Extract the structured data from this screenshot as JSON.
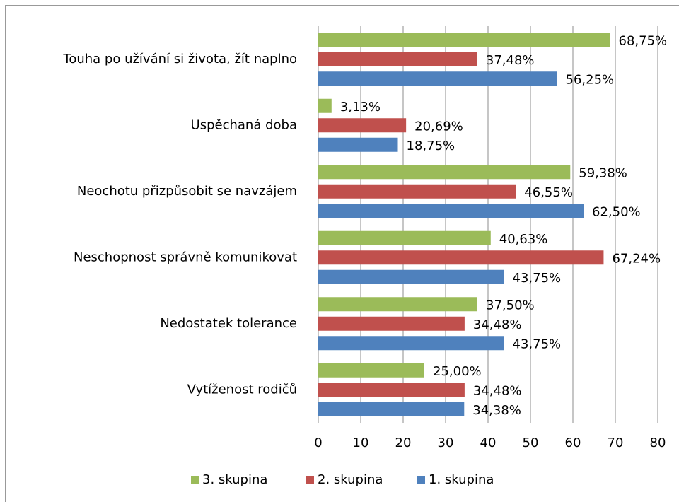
{
  "chart_data": {
    "type": "hbar",
    "categories": [
      "Touha po užívání si života, žít naplno",
      "Uspěchaná doba",
      "Neochotu přizpůsobit se navzájem",
      "Neschopnost správně komunikovat",
      "Nedostatek tolerance",
      "Vytíženost rodičů"
    ],
    "series": [
      {
        "name": "3. skupina",
        "color": "#9bbb59",
        "values": [
          68.75,
          3.13,
          59.38,
          40.63,
          37.5,
          25.0
        ],
        "value_labels": [
          "68,75%",
          "3,13%",
          "59,38%",
          "40,63%",
          "37,50%",
          "25,00%"
        ]
      },
      {
        "name": "2. skupina",
        "color": "#c0504d",
        "values": [
          37.48,
          20.69,
          46.55,
          67.24,
          34.48,
          34.48
        ],
        "value_labels": [
          "37,48%",
          "20,69%",
          "46,55%",
          "67,24%",
          "34,48%",
          "34,48%"
        ]
      },
      {
        "name": "1. skupina",
        "color": "#4f81bd",
        "values": [
          56.25,
          18.75,
          62.5,
          43.75,
          43.75,
          34.38
        ],
        "value_labels": [
          "56,25%",
          "18,75%",
          "62,50%",
          "43,75%",
          "43,75%",
          "34,38%"
        ]
      }
    ],
    "xlim": [
      0,
      80
    ],
    "xticks": [
      0,
      10,
      20,
      30,
      40,
      50,
      60,
      70,
      80
    ],
    "grid": true,
    "legend": "bottom"
  }
}
